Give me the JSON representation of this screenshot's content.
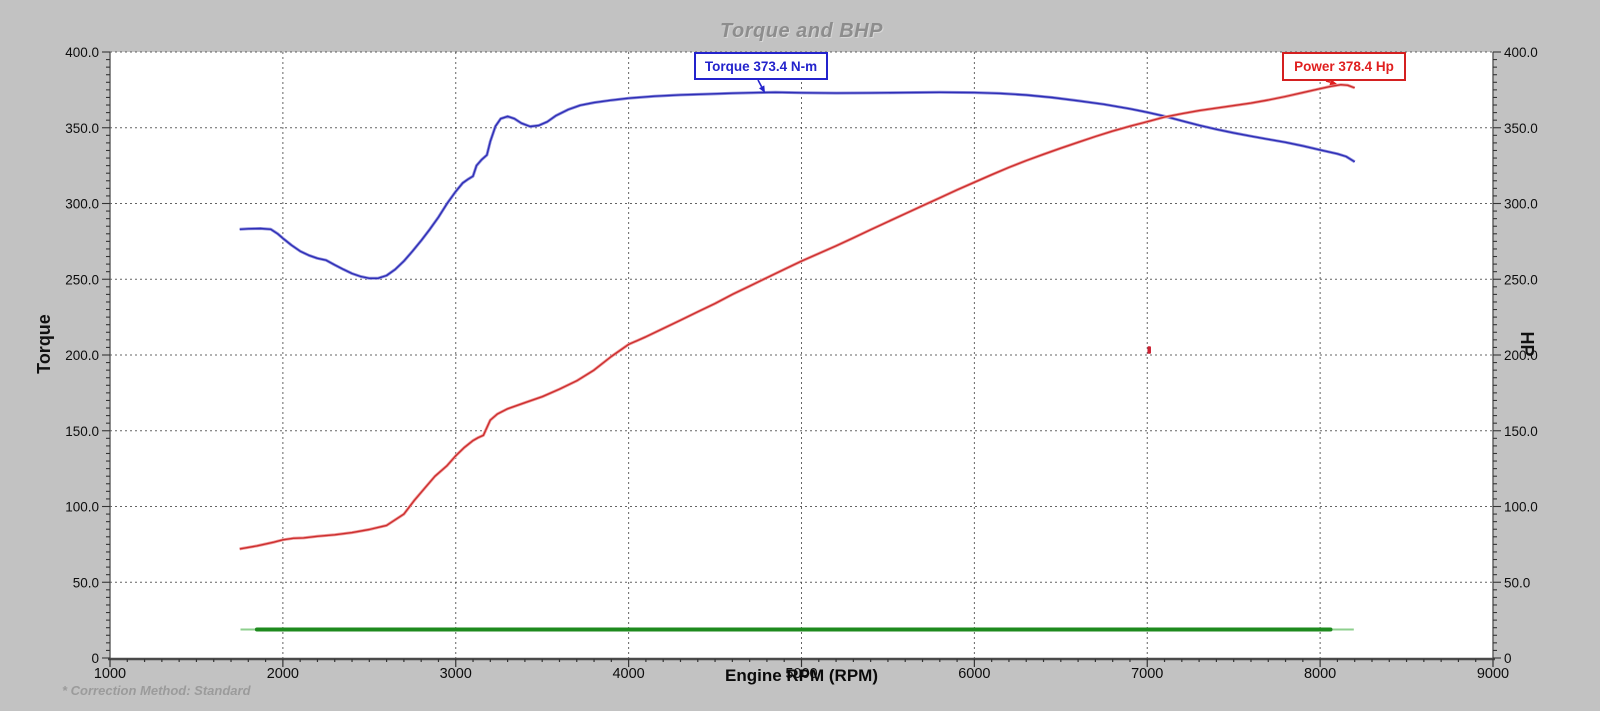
{
  "title": "Torque and BHP",
  "footnote": "* Correction Method: Standard",
  "axes": {
    "x": {
      "label": "Engine RPM (RPM)",
      "min": 1000,
      "max": 9000,
      "major_values": [
        1000,
        2000,
        3000,
        4000,
        5000,
        6000,
        7000,
        8000,
        9000
      ],
      "major_labels": [
        "1000",
        "2000",
        "3000",
        "4000",
        "5000",
        "6000",
        "7000",
        "8000",
        "9000"
      ],
      "minor_step": 100
    },
    "y_left": {
      "label": "Torque",
      "min": 0,
      "max": 400,
      "major_values": [
        0,
        50,
        100,
        150,
        200,
        250,
        300,
        350,
        400
      ],
      "major_labels": [
        "0",
        "50.0",
        "100.0",
        "150.0",
        "200.0",
        "250.0",
        "300.0",
        "350.0",
        "400.0"
      ],
      "minor_step": 5
    },
    "y_right": {
      "label": "HP",
      "min": 0,
      "max": 400,
      "major_values": [
        0,
        50,
        100,
        150,
        200,
        250,
        300,
        350,
        400
      ],
      "major_labels": [
        "0",
        "50.0",
        "100.0",
        "150.0",
        "200.0",
        "250.0",
        "300.0",
        "350.0",
        "400.0"
      ],
      "minor_step": 5
    }
  },
  "annotations": {
    "torque": {
      "text": "Torque 373.4 N-m",
      "color": "#2323cc",
      "arrow_from": [
        758,
        80
      ],
      "arrow_to": [
        765,
        93
      ]
    },
    "power": {
      "text": "Power 378.4 Hp",
      "color": "#e01f1f",
      "arrow_from": [
        1326,
        81
      ],
      "arrow_to": [
        1337,
        84
      ]
    }
  },
  "chart_data": {
    "type": "line",
    "title": "Torque and BHP",
    "xlabel": "Engine RPM (RPM)",
    "ylabel_left": "Torque",
    "ylabel_right": "HP",
    "xlim": [
      1000,
      9000
    ],
    "ylim": [
      0,
      400
    ],
    "grid": "dashed",
    "peaks": {
      "torque": "373.4 N-m",
      "power": "378.4 Hp"
    },
    "series": [
      {
        "name": "Torque",
        "unit": "N-m",
        "axis": "left",
        "color": "#2d2db6",
        "halo_color": "#9393dd",
        "points": [
          [
            1750,
            283
          ],
          [
            1800,
            283.3
          ],
          [
            1870,
            283.5
          ],
          [
            1930,
            283
          ],
          [
            1970,
            280
          ],
          [
            2000,
            277
          ],
          [
            2050,
            272.5
          ],
          [
            2100,
            268.5
          ],
          [
            2150,
            265.8
          ],
          [
            2200,
            263.8
          ],
          [
            2250,
            262.6
          ],
          [
            2300,
            259.5
          ],
          [
            2350,
            256.5
          ],
          [
            2400,
            253.8
          ],
          [
            2450,
            251.8
          ],
          [
            2500,
            250.6
          ],
          [
            2550,
            250.6
          ],
          [
            2600,
            252.5
          ],
          [
            2650,
            256.5
          ],
          [
            2700,
            262
          ],
          [
            2750,
            268.5
          ],
          [
            2800,
            275.5
          ],
          [
            2850,
            283
          ],
          [
            2900,
            291
          ],
          [
            2950,
            300
          ],
          [
            3000,
            308
          ],
          [
            3040,
            313.5
          ],
          [
            3070,
            316
          ],
          [
            3100,
            318
          ],
          [
            3120,
            325
          ],
          [
            3150,
            329
          ],
          [
            3180,
            332
          ],
          [
            3200,
            341
          ],
          [
            3230,
            351
          ],
          [
            3260,
            356
          ],
          [
            3300,
            357.5
          ],
          [
            3340,
            356
          ],
          [
            3380,
            353
          ],
          [
            3430,
            350.8
          ],
          [
            3480,
            351.5
          ],
          [
            3530,
            354
          ],
          [
            3580,
            358
          ],
          [
            3650,
            362
          ],
          [
            3720,
            364.8
          ],
          [
            3800,
            366.6
          ],
          [
            3900,
            368.2
          ],
          [
            4000,
            369.5
          ],
          [
            4150,
            370.8
          ],
          [
            4300,
            371.7
          ],
          [
            4450,
            372.2
          ],
          [
            4600,
            372.8
          ],
          [
            4750,
            373.2
          ],
          [
            4850,
            373.4
          ],
          [
            5000,
            373.1
          ],
          [
            5200,
            372.9
          ],
          [
            5400,
            373
          ],
          [
            5600,
            373.2
          ],
          [
            5800,
            373.4
          ],
          [
            6000,
            373.2
          ],
          [
            6150,
            372.7
          ],
          [
            6300,
            371.6
          ],
          [
            6450,
            370
          ],
          [
            6600,
            367.8
          ],
          [
            6750,
            365.5
          ],
          [
            6900,
            362.5
          ],
          [
            7000,
            360.2
          ],
          [
            7100,
            357.6
          ],
          [
            7200,
            354.6
          ],
          [
            7300,
            351.6
          ],
          [
            7400,
            349
          ],
          [
            7500,
            346.6
          ],
          [
            7600,
            344.4
          ],
          [
            7700,
            342.4
          ],
          [
            7800,
            340.4
          ],
          [
            7900,
            338
          ],
          [
            8000,
            335.4
          ],
          [
            8100,
            332.8
          ],
          [
            8150,
            331
          ],
          [
            8200,
            327.5
          ]
        ]
      },
      {
        "name": "Power",
        "unit": "Hp",
        "axis": "right",
        "color": "#cc2e2e",
        "halo_color": "#f09c9c",
        "points": [
          [
            1750,
            72
          ],
          [
            1850,
            74
          ],
          [
            1950,
            76.5
          ],
          [
            2000,
            78
          ],
          [
            2060,
            79
          ],
          [
            2120,
            79.3
          ],
          [
            2200,
            80.3
          ],
          [
            2300,
            81.3
          ],
          [
            2400,
            82.8
          ],
          [
            2500,
            84.8
          ],
          [
            2600,
            87.5
          ],
          [
            2700,
            95
          ],
          [
            2760,
            104
          ],
          [
            2820,
            112
          ],
          [
            2880,
            120
          ],
          [
            2950,
            127
          ],
          [
            3000,
            133.5
          ],
          [
            3050,
            139
          ],
          [
            3100,
            143.5
          ],
          [
            3130,
            145.5
          ],
          [
            3160,
            147
          ],
          [
            3200,
            157
          ],
          [
            3240,
            161
          ],
          [
            3300,
            164.5
          ],
          [
            3400,
            168.5
          ],
          [
            3500,
            172.5
          ],
          [
            3600,
            177.5
          ],
          [
            3700,
            183
          ],
          [
            3800,
            190
          ],
          [
            3900,
            199
          ],
          [
            4000,
            207
          ],
          [
            4100,
            212
          ],
          [
            4200,
            217.5
          ],
          [
            4300,
            223
          ],
          [
            4400,
            228.5
          ],
          [
            4500,
            234
          ],
          [
            4600,
            240
          ],
          [
            4700,
            245.5
          ],
          [
            4800,
            251
          ],
          [
            4900,
            256.5
          ],
          [
            5000,
            262
          ],
          [
            5100,
            267
          ],
          [
            5200,
            272
          ],
          [
            5300,
            277.3
          ],
          [
            5400,
            282.7
          ],
          [
            5500,
            288
          ],
          [
            5600,
            293.3
          ],
          [
            5700,
            298.5
          ],
          [
            5800,
            303.7
          ],
          [
            5900,
            309
          ],
          [
            6000,
            314
          ],
          [
            6100,
            319
          ],
          [
            6200,
            323.8
          ],
          [
            6300,
            328.3
          ],
          [
            6400,
            332.5
          ],
          [
            6500,
            336.5
          ],
          [
            6600,
            340.4
          ],
          [
            6700,
            344.2
          ],
          [
            6800,
            347.8
          ],
          [
            6900,
            351
          ],
          [
            7000,
            354
          ],
          [
            7100,
            357
          ],
          [
            7200,
            359.3
          ],
          [
            7300,
            361.3
          ],
          [
            7400,
            363
          ],
          [
            7500,
            364.6
          ],
          [
            7600,
            366.3
          ],
          [
            7700,
            368.3
          ],
          [
            7800,
            370.6
          ],
          [
            7900,
            373.2
          ],
          [
            8000,
            375.8
          ],
          [
            8060,
            377.3
          ],
          [
            8120,
            378.4
          ],
          [
            8160,
            378
          ],
          [
            8200,
            376.3
          ]
        ]
      },
      {
        "name": "Run marker",
        "unit": "",
        "axis": "left",
        "color": "#1e8a1e",
        "halo_color": "#8ecf8e",
        "points": [
          [
            1755,
            18.8
          ],
          [
            8195,
            18.8
          ]
        ],
        "thick_segment": [
          [
            1850,
            18.8
          ],
          [
            8060,
            18.8
          ]
        ]
      }
    ],
    "artifact_point": {
      "rpm": 7010,
      "value": 203.5,
      "color": "#cc2233"
    }
  }
}
